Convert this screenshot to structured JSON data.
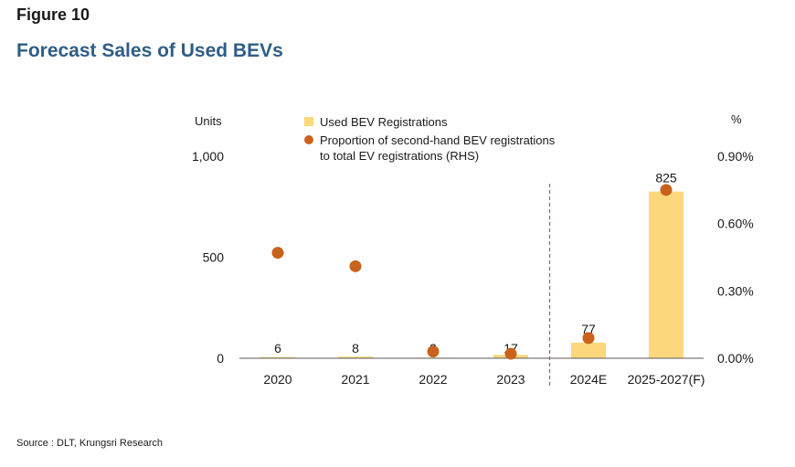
{
  "figure_label": "Figure 10",
  "figure_title": "Forecast Sales of Used BEVs",
  "source": "Source : DLT, Krungsri Research",
  "colors": {
    "bar": "#fdd77c",
    "dot": "#c8621c",
    "title": "#2f5d86",
    "divider": "#8b6a63"
  },
  "chart_data": {
    "type": "bar",
    "categories": [
      "2020",
      "2021",
      "2022",
      "2023",
      "2024E",
      "2025-2027(F)"
    ],
    "series": [
      {
        "name": "Used BEV Registrations",
        "type": "bar",
        "axis": "left",
        "values": [
          6,
          8,
          3,
          17,
          77,
          825
        ],
        "labels": [
          "6",
          "8",
          "3",
          "17",
          "77",
          "825"
        ]
      },
      {
        "name": "Proportion of second-hand BEV registrations to total EV registrations (RHS)",
        "name_lines": [
          "Proportion of second-hand BEV registrations",
          "to total EV registrations (RHS)"
        ],
        "type": "scatter",
        "axis": "right",
        "values": [
          0.47,
          0.41,
          0.03,
          0.02,
          0.09,
          0.75
        ]
      }
    ],
    "left_axis": {
      "unit": "Units",
      "ylim": [
        0,
        1000
      ],
      "ticks": [
        0,
        500,
        1000
      ],
      "tick_labels": [
        "0",
        "500",
        "1,000"
      ]
    },
    "right_axis": {
      "unit": "%",
      "ylim": [
        0,
        0.9
      ],
      "ticks": [
        0,
        0.3,
        0.6,
        0.9
      ],
      "tick_labels": [
        "0.00%",
        "0.30%",
        "0.60%",
        "0.90%"
      ]
    },
    "divider_after_category": "2023",
    "legend_position": "top",
    "grid": false
  }
}
